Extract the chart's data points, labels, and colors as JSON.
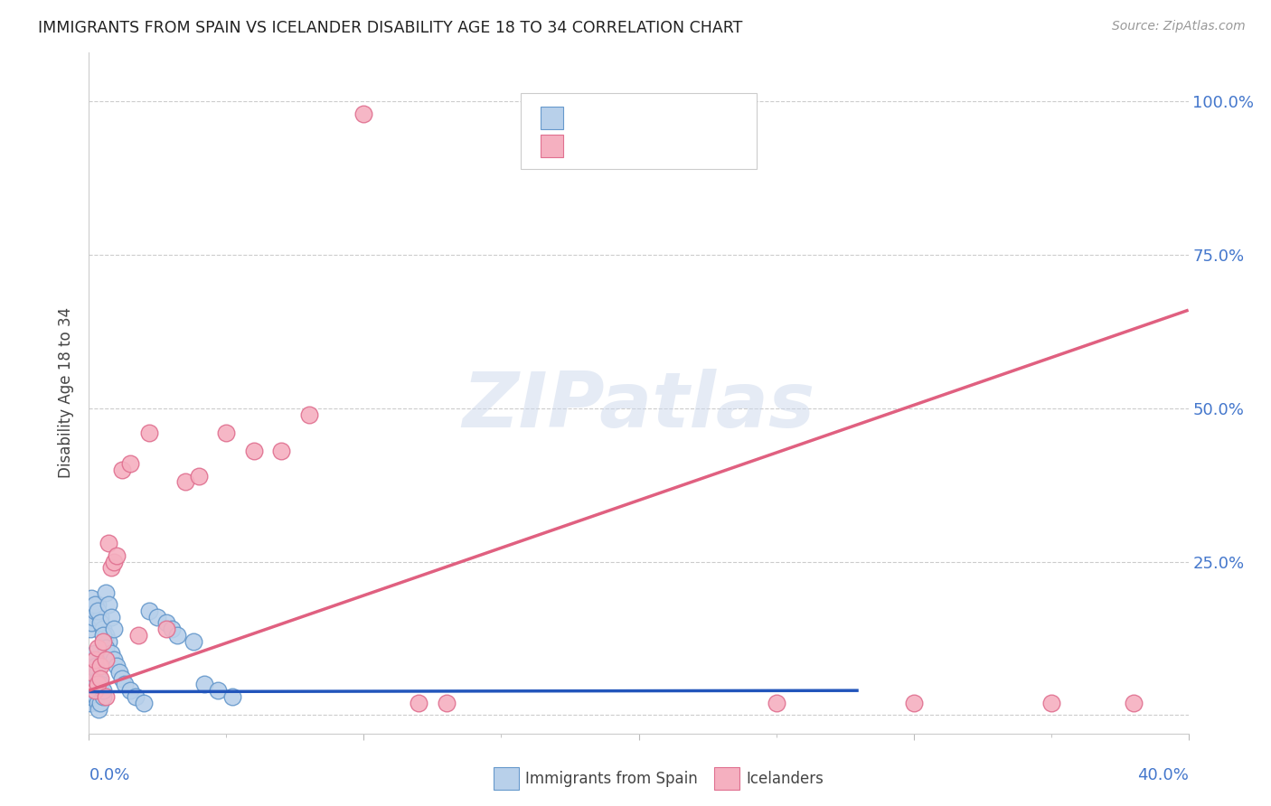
{
  "title": "IMMIGRANTS FROM SPAIN VS ICELANDER DISABILITY AGE 18 TO 34 CORRELATION CHART",
  "source": "Source: ZipAtlas.com",
  "ylabel": "Disability Age 18 to 34",
  "ytick_values": [
    0.0,
    0.25,
    0.5,
    0.75,
    1.0
  ],
  "ytick_labels": [
    "",
    "25.0%",
    "50.0%",
    "75.0%",
    "100.0%"
  ],
  "xlim": [
    0.0,
    0.4
  ],
  "ylim": [
    -0.03,
    1.08
  ],
  "legend_label_blue": "Immigrants from Spain",
  "legend_label_pink": "Icelanders",
  "blue_color": "#b8d0ea",
  "pink_color": "#f5b0c0",
  "blue_edge": "#6699cc",
  "pink_edge": "#e07090",
  "trend_blue_color": "#2255bb",
  "trend_pink_color": "#e06080",
  "watermark_text": "ZIPatlas",
  "blue_scatter_x": [
    0.0005,
    0.001,
    0.0015,
    0.002,
    0.0025,
    0.003,
    0.0035,
    0.004,
    0.005,
    0.0005,
    0.001,
    0.0015,
    0.002,
    0.0025,
    0.003,
    0.0035,
    0.004,
    0.005,
    0.0005,
    0.001,
    0.0015,
    0.002,
    0.003,
    0.004,
    0.005,
    0.006,
    0.007,
    0.001,
    0.002,
    0.003,
    0.004,
    0.005,
    0.006,
    0.008,
    0.009,
    0.01,
    0.011,
    0.012,
    0.013,
    0.015,
    0.017,
    0.02,
    0.022,
    0.025,
    0.028,
    0.03,
    0.032,
    0.038,
    0.042,
    0.047,
    0.052,
    0.006,
    0.007,
    0.008,
    0.009
  ],
  "blue_scatter_y": [
    0.02,
    0.03,
    0.04,
    0.05,
    0.03,
    0.02,
    0.01,
    0.02,
    0.03,
    0.07,
    0.08,
    0.09,
    0.1,
    0.08,
    0.07,
    0.06,
    0.05,
    0.04,
    0.14,
    0.15,
    0.16,
    0.17,
    0.18,
    0.16,
    0.14,
    0.13,
    0.12,
    0.19,
    0.18,
    0.17,
    0.15,
    0.13,
    0.11,
    0.1,
    0.09,
    0.08,
    0.07,
    0.06,
    0.05,
    0.04,
    0.03,
    0.02,
    0.17,
    0.16,
    0.15,
    0.14,
    0.13,
    0.12,
    0.05,
    0.04,
    0.03,
    0.2,
    0.18,
    0.16,
    0.14
  ],
  "pink_scatter_x": [
    0.001,
    0.002,
    0.003,
    0.004,
    0.005,
    0.006,
    0.007,
    0.008,
    0.009,
    0.01,
    0.012,
    0.015,
    0.018,
    0.022,
    0.028,
    0.035,
    0.04,
    0.05,
    0.06,
    0.07,
    0.08,
    0.1,
    0.002,
    0.003,
    0.004,
    0.006,
    0.12,
    0.13,
    0.35,
    0.38,
    0.25,
    0.3
  ],
  "pink_scatter_y": [
    0.07,
    0.09,
    0.11,
    0.08,
    0.12,
    0.09,
    0.28,
    0.24,
    0.25,
    0.26,
    0.4,
    0.41,
    0.13,
    0.46,
    0.14,
    0.38,
    0.39,
    0.46,
    0.43,
    0.43,
    0.49,
    0.98,
    0.04,
    0.05,
    0.06,
    0.03,
    0.02,
    0.02,
    0.02,
    0.02,
    0.02,
    0.02
  ],
  "blue_trend_x": [
    0.0,
    0.28
  ],
  "blue_trend_y": [
    0.038,
    0.04
  ],
  "pink_trend_x": [
    0.0,
    0.4
  ],
  "pink_trend_y": [
    0.04,
    0.66
  ],
  "grid_color": "#cccccc",
  "axis_label_color": "#4477cc",
  "title_color": "#222222",
  "source_color": "#999999"
}
